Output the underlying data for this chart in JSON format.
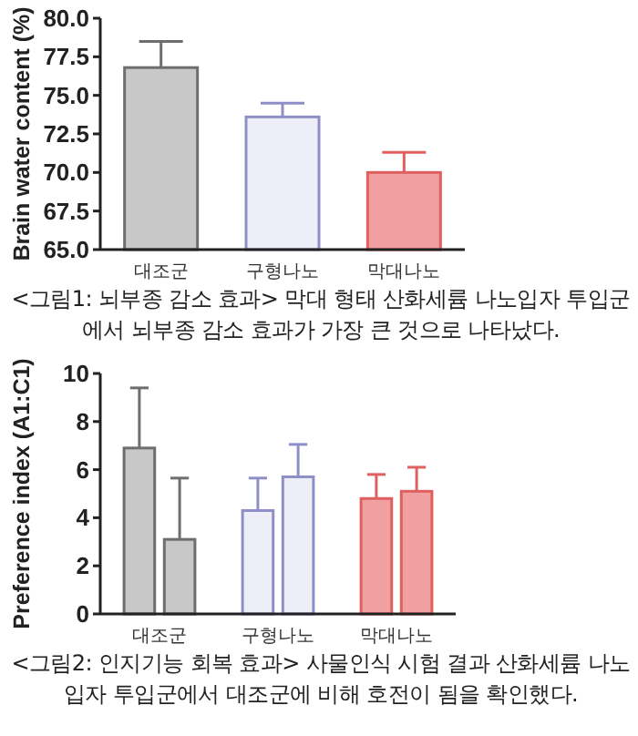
{
  "chart_data": [
    {
      "type": "bar",
      "categories": [
        "대조군",
        "구형나노",
        "막대나노"
      ],
      "values": [
        76.8,
        73.6,
        70.0
      ],
      "colors": [
        "#c8c8c8",
        "#eeeef8",
        "#f0a0a0"
      ],
      "errors": [
        [
          76.8,
          78.5
        ],
        [
          73.6,
          74.5
        ],
        [
          70.0,
          71.3
        ]
      ],
      "ylabel": "Brain water content (%)",
      "ylim": [
        65,
        80
      ],
      "yticks": [
        {
          "value": 65,
          "label": "65.0"
        },
        {
          "value": 67.5,
          "label": "67.5"
        },
        {
          "value": 70,
          "label": "70.0"
        },
        {
          "value": 72.5,
          "label": "72.5"
        },
        {
          "value": 75,
          "label": "75.0"
        },
        {
          "value": 77.5,
          "label": "77.5"
        },
        {
          "value": 80,
          "label": "80.0"
        }
      ],
      "annotations": [
        "<그림1: 뇌부종 감소 효과> 막대 형태 산화세륨 나노입자 투입군에서 뇌부종 감소 효과가 가장 큰 것으로 나타났다."
      ]
    },
    {
      "type": "bar",
      "categories": [
        "대조군",
        "구형나노",
        "막대나노"
      ],
      "series": [
        {
          "colors": [
            "#c8c8c8",
            "#eeeef8",
            "#f0a0a0"
          ],
          "values": [
            6.9,
            4.3,
            4.8
          ],
          "errors": [
            [
              6.9,
              9.4
            ],
            [
              4.3,
              5.65
            ],
            [
              4.8,
              5.8
            ]
          ]
        },
        {
          "colors": [
            "#c8c8c8",
            "#eeeef8",
            "#f0a0a0"
          ],
          "values": [
            3.1,
            5.7,
            5.1
          ],
          "errors": [
            [
              3.1,
              5.65
            ],
            [
              5.7,
              7.05
            ],
            [
              5.1,
              6.1
            ]
          ]
        }
      ],
      "ylabel": "Preference index (A1:C1)",
      "ylim": [
        0,
        10
      ],
      "yticks": [
        0,
        2,
        4,
        6,
        8,
        10
      ],
      "annotations": [
        "<그림2: 인지기능 회복 효과> 사물인식 시험 결과 산화세륨 나노입자 투입군에서 대조군에 비해 호전이 됨을 확인했다."
      ]
    }
  ]
}
